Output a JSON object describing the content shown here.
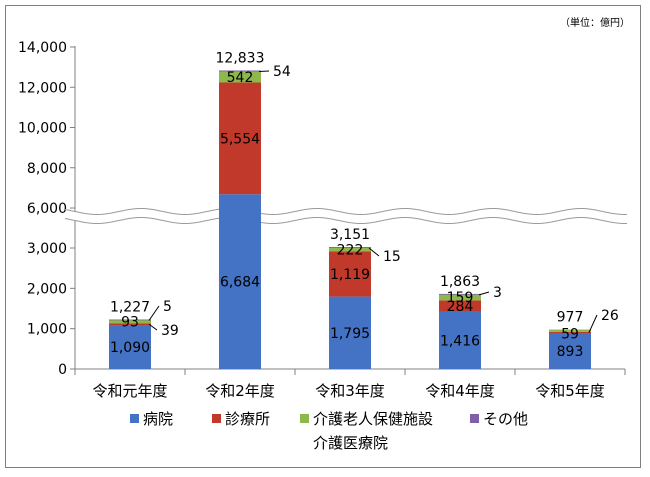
{
  "unit_label": "（単位：億円）",
  "chart_data": {
    "type": "bar",
    "stacked": true,
    "broken_axis": true,
    "categories": [
      "令和元年度",
      "令和2年度",
      "令和3年度",
      "令和4年度",
      "令和5年度"
    ],
    "series": [
      {
        "name": "病院",
        "color": "#4472C4",
        "values": [
          1090,
          6684,
          1795,
          1416,
          893
        ]
      },
      {
        "name": "診療所",
        "color": "#C0392B",
        "values": [
          39,
          5554,
          1119,
          284,
          26
        ]
      },
      {
        "name": "介護老人保健施設",
        "color": "#8DB94B",
        "values": [
          93,
          542,
          222,
          159,
          59
        ]
      },
      {
        "name": "その他",
        "color": "#7F5FA6",
        "values": [
          5,
          54,
          15,
          3,
          0
        ]
      }
    ],
    "series_value_labels": [
      [
        "1,090",
        "6,684",
        "1,795",
        "1,416",
        "893"
      ],
      [
        "39",
        "5,554",
        "1,119",
        "284",
        "26"
      ],
      [
        "93",
        "542",
        "222",
        "159",
        "59"
      ],
      [
        "5",
        "54",
        "15",
        "3",
        ""
      ]
    ],
    "totals": [
      1227,
      12833,
      3151,
      1863,
      977
    ],
    "total_labels": [
      "1,227",
      "12,833",
      "3,151",
      "1,863",
      "977"
    ],
    "y_ticks_lower": [
      0,
      1000,
      2000,
      3000
    ],
    "y_tick_labels_lower": [
      "0",
      "1,000",
      "2,000",
      "3,000"
    ],
    "y_ticks_upper": [
      6000,
      8000,
      10000,
      12000,
      14000
    ],
    "y_tick_labels_upper": [
      "6,000",
      "8,000",
      "10,000",
      "12,000",
      "14,000"
    ],
    "legend": [
      "病院",
      "診療所",
      "介護老人保健施設",
      "その他"
    ],
    "legend_extra": "介護医療院",
    "legend_position": "bottom",
    "gridlines": false
  }
}
